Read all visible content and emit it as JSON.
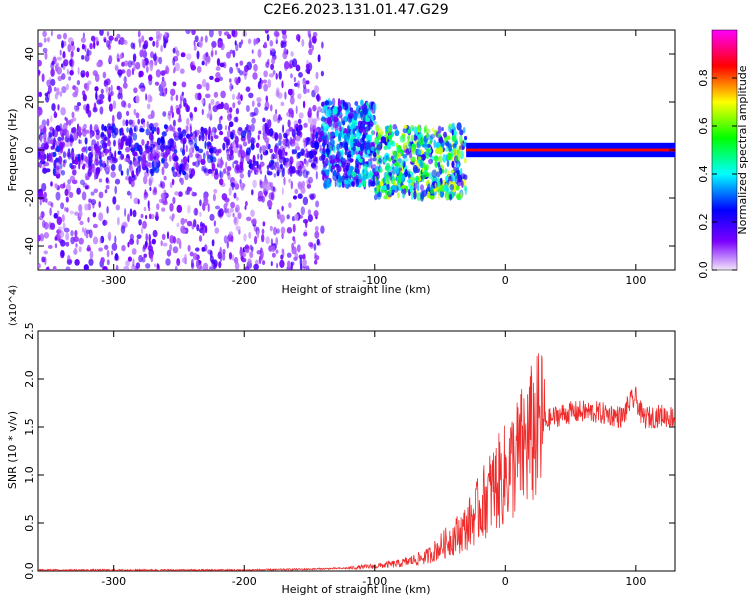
{
  "title": "C2E6.2023.131.01.47.G29",
  "chart_data": [
    {
      "type": "heatmap",
      "xlabel": "Height of straight line (km)",
      "ylabel": "Frequency (Hz)",
      "xlim": [
        -358,
        130
      ],
      "ylim": [
        -50,
        50
      ],
      "xticks": [
        -300,
        -200,
        -100,
        0,
        100
      ],
      "yticks": [
        -40,
        -20,
        0,
        20,
        40
      ],
      "colorbar": {
        "label": "Normalized spectral amplitude",
        "range": [
          0.0,
          1.0
        ],
        "ticks": [
          0.0,
          0.2,
          0.4,
          0.6,
          0.8
        ],
        "colormap": [
          "#f2e6fa",
          "#7b00ff",
          "#0000ff",
          "#00ffff",
          "#00ff00",
          "#ffff00",
          "#ff0000",
          "#ff00ff"
        ]
      },
      "features": [
        {
          "x": [
            -358,
            -140
          ],
          "y": [
            -50,
            50
          ],
          "level": 0.12
        },
        {
          "x": [
            -358,
            -140
          ],
          "y": [
            -10,
            10
          ],
          "level": 0.18
        },
        {
          "x": [
            -140,
            -100
          ],
          "y": [
            -15,
            20
          ],
          "level": 0.3
        },
        {
          "x": [
            -100,
            -30
          ],
          "y": [
            -20,
            10
          ],
          "level": 0.45
        },
        {
          "x": [
            -30,
            130
          ],
          "y": [
            -1,
            1
          ],
          "level": 0.9
        }
      ]
    },
    {
      "type": "line",
      "xlabel": "Height of straight line (km)",
      "ylabel": "SNR (10 * v/v)",
      "y_multiplier": "(x10^4)",
      "xlim": [
        -358,
        130
      ],
      "ylim": [
        0.0,
        2.5
      ],
      "xticks": [
        -300,
        -200,
        -100,
        0,
        100
      ],
      "yticks": [
        "0.0",
        "0.5",
        "1.0",
        "1.5",
        "2.0",
        "2.5"
      ],
      "series": [
        {
          "color": "#ee2c2c",
          "x": [
            -358,
            -300,
            -250,
            -200,
            -150,
            -120,
            -100,
            -80,
            -60,
            -50,
            -40,
            -30,
            -25,
            -20,
            -10,
            0,
            10,
            20,
            30,
            40,
            50,
            60,
            70,
            80,
            90,
            95,
            100,
            105,
            110,
            120,
            130
          ],
          "y": [
            0.01,
            0.01,
            0.01,
            0.01,
            0.02,
            0.03,
            0.05,
            0.08,
            0.15,
            0.25,
            0.35,
            0.45,
            0.55,
            0.65,
            0.85,
            1.0,
            1.2,
            1.4,
            1.55,
            1.62,
            1.65,
            1.66,
            1.65,
            1.63,
            1.6,
            1.75,
            1.8,
            1.6,
            1.6,
            1.62,
            1.6
          ]
        }
      ]
    }
  ]
}
